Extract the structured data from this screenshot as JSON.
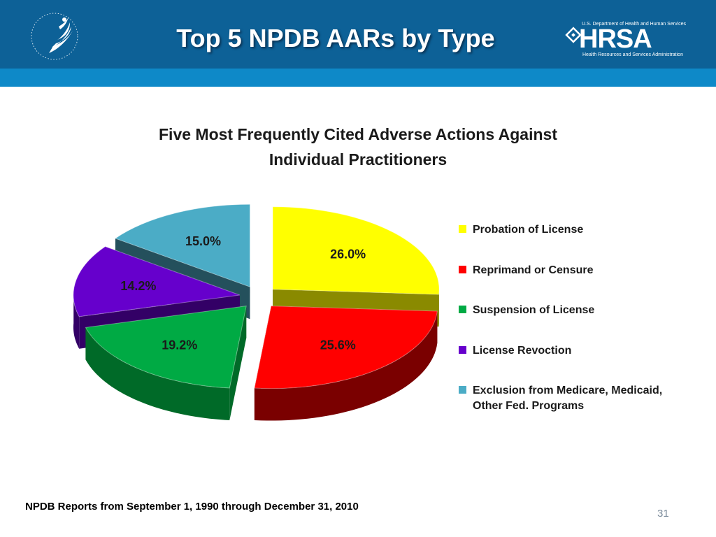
{
  "slide": {
    "title": "Top 5 NPDB AARs by Type",
    "footer": "NPDB Reports from September 1, 1990 through December 31, 2010",
    "page_number": "31"
  },
  "logos": {
    "hhs": {
      "icon": "hhs-eagle-icon"
    },
    "hrsa": {
      "department": "U.S. Department of Health and Human Services",
      "wordmark": "HRSA",
      "subtitle": "Health Resources and Services Administration"
    }
  },
  "colors": {
    "header": "#0d6197",
    "header_band": "#0e89c8"
  },
  "chart_data": {
    "type": "pie",
    "title_lines": [
      "Five Most Frequently Cited Adverse Actions Against",
      "Individual Practitioners"
    ],
    "legend_position": "right",
    "exploded": true,
    "three_d": true,
    "series": [
      {
        "name": "Probation of License",
        "value": 26.0,
        "label": "26.0%",
        "color": "#ffff00",
        "side": "#8a8a00"
      },
      {
        "name": "Reprimand or Censure",
        "value": 25.6,
        "label": "25.6%",
        "color": "#ff0000",
        "side": "#7a0000"
      },
      {
        "name": "Suspension of License",
        "value": 19.2,
        "label": "19.2%",
        "color": "#00aa44",
        "side": "#006a28"
      },
      {
        "name": "License Revoction",
        "value": 14.2,
        "label": "14.2%",
        "color": "#6600cc",
        "side": "#330066"
      },
      {
        "name": "Exclusion from Medicare, Medicaid, Other Fed. Programs",
        "value": 15.0,
        "label": "15.0%",
        "color": "#4bacc6",
        "side": "#24505c"
      }
    ]
  }
}
